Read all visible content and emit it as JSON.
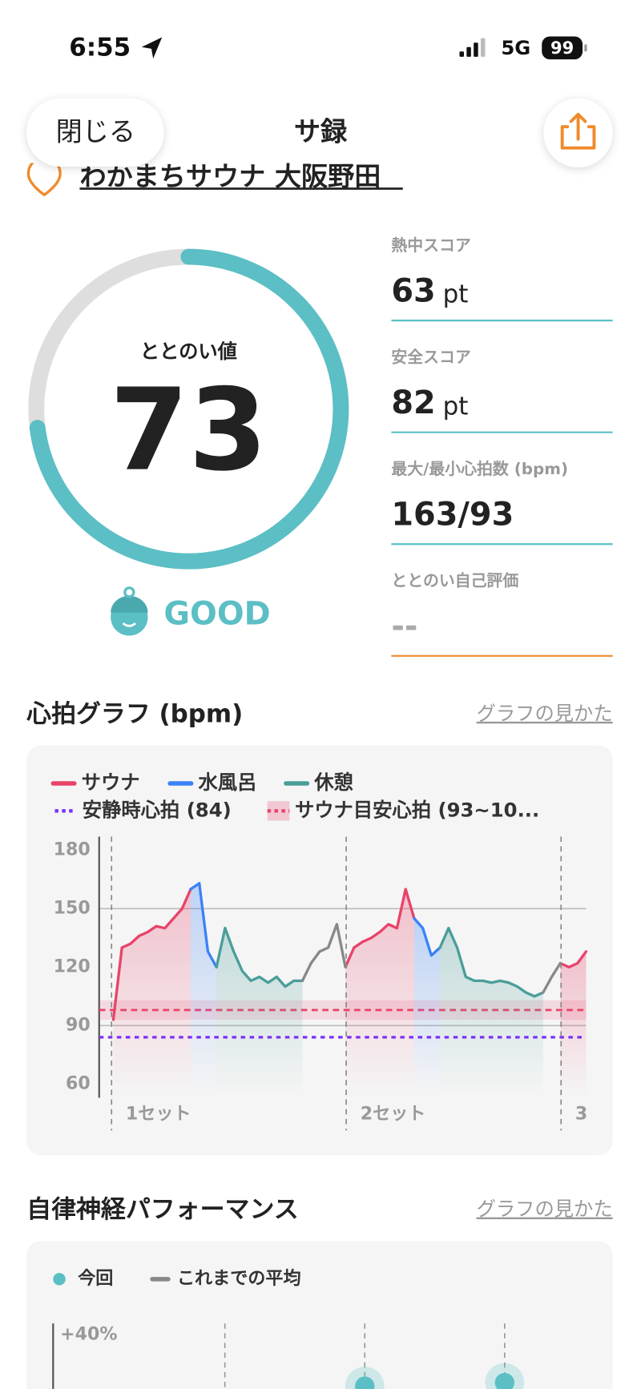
{
  "status_bar": {
    "time": "6:55",
    "network": "5G",
    "battery": "99"
  },
  "header": {
    "close": "閉じる",
    "title": "サ録"
  },
  "facility": "わかまちサウナ 大阪野田",
  "score": {
    "label": "ととのい値",
    "value": 73,
    "rating": "GOOD"
  },
  "stats": [
    {
      "label": "熱中スコア",
      "value": 63,
      "unit": "pt"
    },
    {
      "label": "安全スコア",
      "value": 82,
      "unit": "pt"
    },
    {
      "label": "最大/最小心拍数 (bpm)",
      "value": "163/93"
    },
    {
      "label": "ととのい自己評価",
      "value": "--"
    }
  ],
  "heart_chart": {
    "type": "line",
    "title": "心拍グラフ (bpm)",
    "link": "グラフの見かた",
    "series": [
      {
        "name": "サウナ",
        "color": "#e8436a",
        "values": [
          93,
          130,
          132,
          136,
          138,
          141,
          140,
          145,
          150,
          160,
          null,
          null,
          null,
          null,
          null,
          null,
          null,
          null,
          null,
          null,
          null,
          null,
          null,
          null,
          null,
          null,
          null,
          null,
          130,
          133,
          135,
          138,
          142,
          140,
          160,
          145,
          null,
          null,
          null,
          null,
          null,
          null,
          null,
          null,
          null,
          null,
          null,
          null,
          null,
          null,
          null,
          null,
          null,
          120,
          122,
          128
        ]
      },
      {
        "name": "水風呂",
        "color": "#3b82f6",
        "values": [
          null,
          null,
          null,
          null,
          null,
          null,
          null,
          null,
          null,
          null,
          163,
          128,
          120,
          null,
          null,
          null,
          null,
          null,
          null,
          null,
          null,
          null,
          null,
          null,
          null,
          null,
          null,
          null,
          null,
          null,
          null,
          null,
          null,
          null,
          null,
          null,
          140,
          126,
          130,
          null,
          null,
          null,
          null,
          null,
          null,
          null,
          null,
          null,
          null,
          null,
          null,
          null,
          null,
          null,
          null,
          null
        ]
      },
      {
        "name": "休憩",
        "color": "#4a9e9a",
        "values": [
          null,
          null,
          null,
          null,
          null,
          null,
          null,
          null,
          null,
          null,
          null,
          null,
          null,
          140,
          128,
          118,
          113,
          115,
          112,
          115,
          110,
          113,
          113,
          null,
          null,
          null,
          null,
          null,
          null,
          null,
          null,
          null,
          null,
          null,
          null,
          null,
          null,
          null,
          null,
          140,
          130,
          115,
          113,
          113,
          112,
          113,
          112,
          110,
          107,
          105,
          107,
          null,
          null,
          null,
          null,
          null
        ]
      },
      {
        "color": "#888888",
        "values": [
          null,
          null,
          null,
          null,
          null,
          null,
          null,
          null,
          null,
          null,
          null,
          null,
          null,
          null,
          null,
          null,
          null,
          null,
          null,
          null,
          null,
          null,
          null,
          122,
          128,
          130,
          142,
          120,
          null,
          null,
          null,
          null,
          null,
          null,
          null,
          null,
          null,
          null,
          null,
          null,
          null,
          null,
          null,
          null,
          null,
          null,
          null,
          null,
          null,
          null,
          null,
          115,
          122,
          null,
          null,
          null
        ]
      }
    ],
    "resting": {
      "name": "安静時心拍 (84)",
      "value": 84,
      "color": "#7b2ff7"
    },
    "target": {
      "name": "サウナ目安心拍 (93~10...",
      "range": [
        93,
        103
      ],
      "color": "#e8436a"
    },
    "ylim": [
      53,
      187
    ],
    "yticks": [
      60,
      90,
      120,
      150,
      180
    ],
    "grid_lines": [
      90,
      150
    ],
    "sets": [
      "1セット",
      "2セット",
      "3"
    ]
  },
  "autonomic_chart": {
    "type": "scatter",
    "title": "自律神経パフォーマンス",
    "link": "グラフの見かた",
    "legend": [
      "今回",
      "これまでの平均"
    ],
    "yticks": [
      {
        "value": 40,
        "label": "+40%"
      }
    ]
  }
}
